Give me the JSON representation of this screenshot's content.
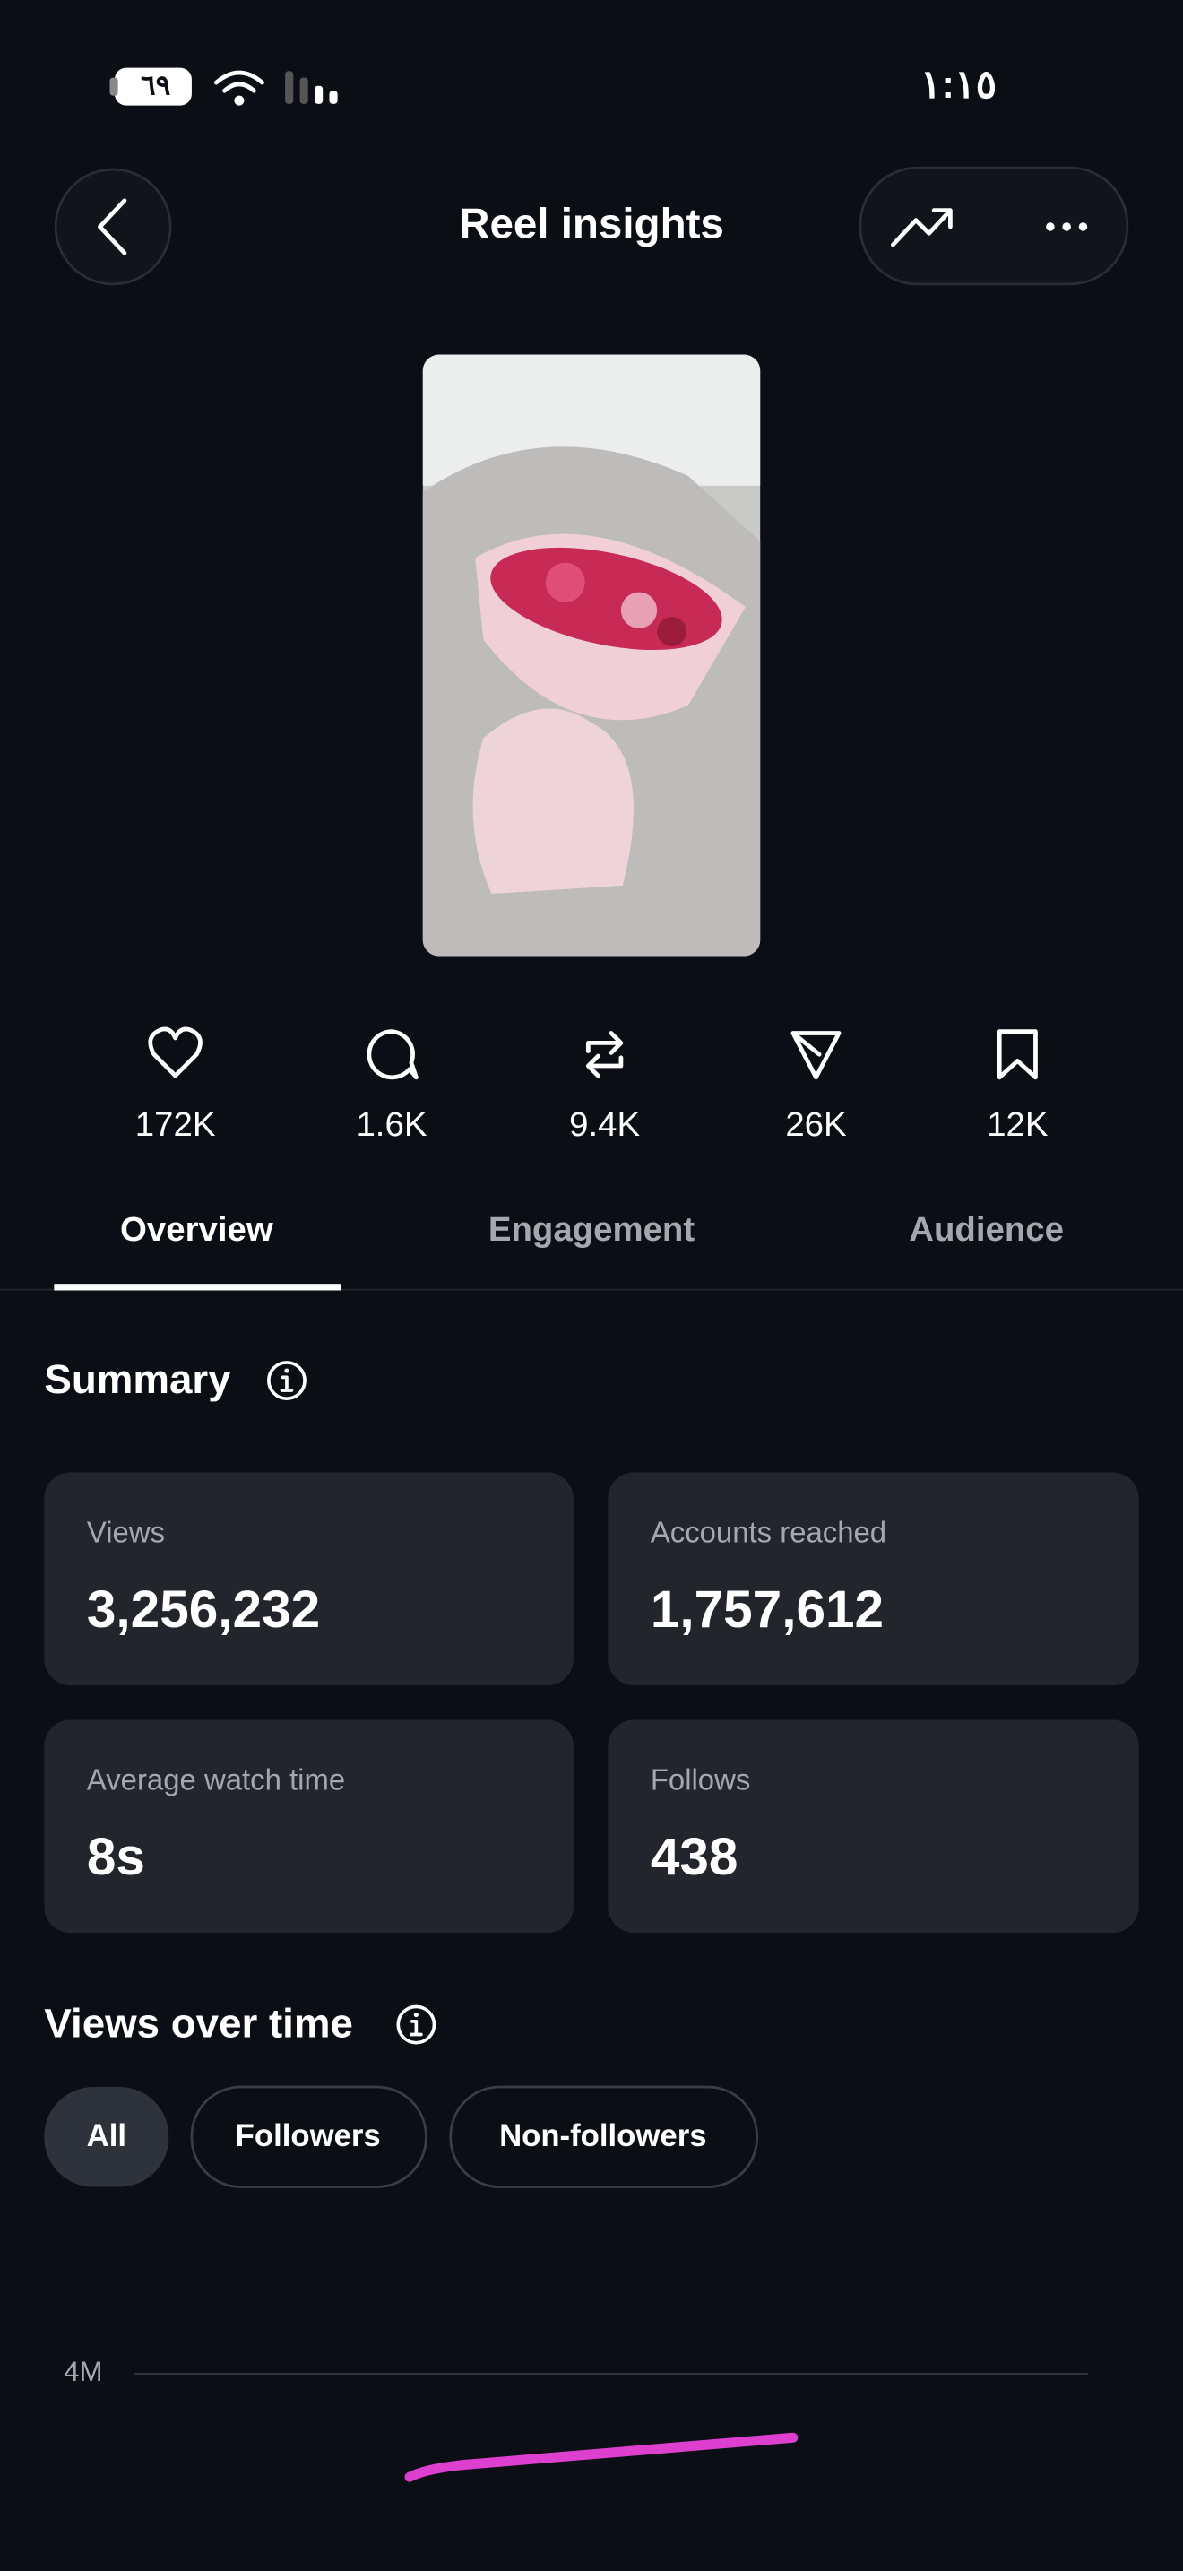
{
  "status_bar": {
    "battery": "٦٩",
    "time": "١:١٥"
  },
  "header": {
    "title": "Reel insights"
  },
  "stats": [
    "172K",
    "1.6K",
    "9.4K",
    "26K",
    "12K"
  ],
  "tabs": [
    "Overview",
    "Engagement",
    "Audience"
  ],
  "summary": {
    "title": "Summary",
    "cards": [
      {
        "label": "Views",
        "value": "3,256,232"
      },
      {
        "label": "Accounts reached",
        "value": "1,757,612"
      },
      {
        "label": "Average watch time",
        "value": "8s"
      },
      {
        "label": "Follows",
        "value": "438"
      }
    ]
  },
  "views_over_time": {
    "title": "Views over time",
    "filters": [
      "All",
      "Followers",
      "Non-followers"
    ],
    "axis_label": "4M"
  }
}
